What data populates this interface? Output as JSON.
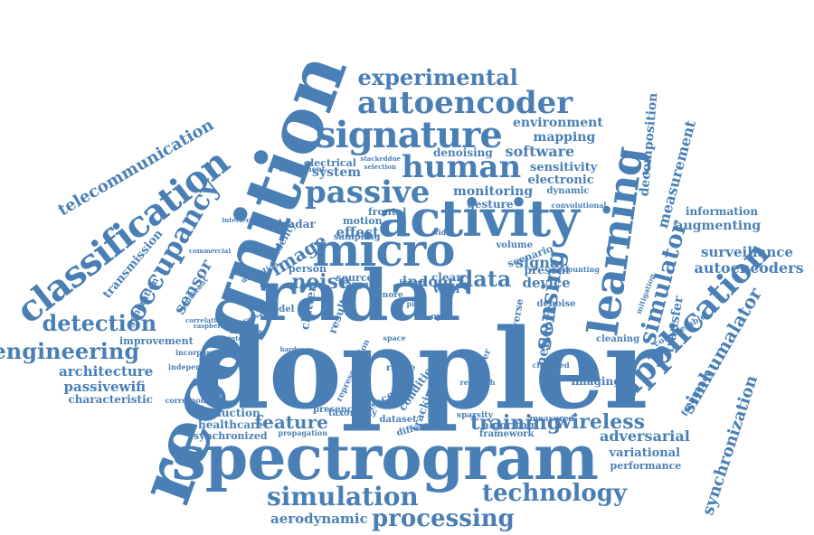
{
  "accent_color": "#4a7fb5",
  "words": [
    {
      "id": "doppler",
      "text": "doppler"
    },
    {
      "id": "spectrogram",
      "text": "spectrogram"
    },
    {
      "id": "recognition",
      "text": "recognition"
    },
    {
      "id": "radar",
      "text": "radar"
    },
    {
      "id": "activity",
      "text": "activity"
    },
    {
      "id": "micro",
      "text": "micro"
    },
    {
      "id": "learning",
      "text": "learning"
    },
    {
      "id": "signature",
      "text": "signature"
    },
    {
      "id": "passive",
      "text": "passive"
    },
    {
      "id": "human",
      "text": "human"
    },
    {
      "id": "autoencoder",
      "text": "autoencoder"
    },
    {
      "id": "classification",
      "text": "classification"
    },
    {
      "id": "occupancy",
      "text": "occupancy"
    },
    {
      "id": "application",
      "text": "application"
    },
    {
      "id": "simulation",
      "text": "simulation"
    },
    {
      "id": "technology",
      "text": "technology"
    },
    {
      "id": "processing",
      "text": "processing"
    },
    {
      "id": "detection",
      "text": "detection"
    },
    {
      "id": "engineering",
      "text": "engineering"
    },
    {
      "id": "experimental",
      "text": "experimental"
    },
    {
      "id": "simulator",
      "text": "simulator"
    },
    {
      "id": "sensing",
      "text": "sensing"
    },
    {
      "id": "simhumalator",
      "text": "simhumalator"
    },
    {
      "id": "training",
      "text": "training"
    },
    {
      "id": "wireless",
      "text": "wireless"
    },
    {
      "id": "feature",
      "text": "feature"
    },
    {
      "id": "noise",
      "text": "noise"
    },
    {
      "id": "data",
      "text": "data"
    },
    {
      "id": "image",
      "text": "image"
    },
    {
      "id": "sensor",
      "text": "sensor"
    },
    {
      "id": "telecommunication",
      "text": "telecommunication"
    },
    {
      "id": "measurement",
      "text": "measurement"
    },
    {
      "id": "decomposition",
      "text": "decomposition"
    },
    {
      "id": "synchronization",
      "text": "synchronization"
    },
    {
      "id": "adversarial",
      "text": "adversarial"
    },
    {
      "id": "variational",
      "text": "variational"
    },
    {
      "id": "performance",
      "text": "performance"
    },
    {
      "id": "autoencoders",
      "text": "autoencoders"
    },
    {
      "id": "surveillance",
      "text": "surveillance"
    },
    {
      "id": "augmenting",
      "text": "augmenting"
    },
    {
      "id": "information",
      "text": "information"
    },
    {
      "id": "architecture",
      "text": "architecture"
    },
    {
      "id": "passivewifi",
      "text": "passivewifi"
    },
    {
      "id": "characteristic",
      "text": "characteristic"
    },
    {
      "id": "healthcare",
      "text": "healthcare"
    },
    {
      "id": "synchronized",
      "text": "synchronized"
    },
    {
      "id": "reduction",
      "text": "reduction"
    },
    {
      "id": "aerodynamic",
      "text": "aerodynamic"
    },
    {
      "id": "software",
      "text": "software"
    },
    {
      "id": "mapping",
      "text": "mapping"
    },
    {
      "id": "environment",
      "text": "environment"
    },
    {
      "id": "monitoring",
      "text": "monitoring"
    },
    {
      "id": "system",
      "text": "system"
    },
    {
      "id": "effect",
      "text": "effect"
    },
    {
      "id": "transfer",
      "text": "transfer"
    },
    {
      "id": "network",
      "text": "network"
    },
    {
      "id": "device",
      "text": "device"
    },
    {
      "id": "indoor",
      "text": "indoor"
    },
    {
      "id": "signal",
      "text": "signal"
    },
    {
      "id": "transmission",
      "text": "transmission"
    },
    {
      "id": "improvement",
      "text": "improvement"
    },
    {
      "id": "imaging",
      "text": "imaging"
    },
    {
      "id": "framework",
      "text": "framework"
    },
    {
      "id": "electronic",
      "text": "electronic"
    },
    {
      "id": "sensitivity",
      "text": "sensitivity"
    },
    {
      "id": "denoising",
      "text": "denoising"
    },
    {
      "id": "frequency",
      "text": "frequency"
    },
    {
      "id": "generation",
      "text": "generation"
    },
    {
      "id": "sdradar",
      "text": "sdradar"
    },
    {
      "id": "electrical",
      "text": "electrical"
    },
    {
      "id": "clutter",
      "text": "clutter"
    },
    {
      "id": "present",
      "text": "present"
    },
    {
      "id": "wall",
      "text": "wall"
    },
    {
      "id": "clean",
      "text": "clean"
    },
    {
      "id": "gesture",
      "text": "gesture"
    },
    {
      "id": "dynamic",
      "text": "dynamic"
    },
    {
      "id": "tracking",
      "text": "tracking"
    },
    {
      "id": "condition",
      "text": "condition"
    },
    {
      "id": "dataset",
      "text": "dataset"
    },
    {
      "id": "science",
      "text": "science"
    },
    {
      "id": "result",
      "text": "result"
    },
    {
      "id": "model",
      "text": "model"
    },
    {
      "id": "volume",
      "text": "volume"
    },
    {
      "id": "scenario",
      "text": "scenario"
    },
    {
      "id": "target",
      "text": "target"
    },
    {
      "id": "source",
      "text": "source"
    },
    {
      "id": "person",
      "text": "person"
    },
    {
      "id": "motion",
      "text": "motion"
    },
    {
      "id": "frontal",
      "text": "frontal"
    },
    {
      "id": "fidelity",
      "text": "fidelity"
    },
    {
      "id": "algorithm",
      "text": "algorithm"
    },
    {
      "id": "measured",
      "text": "measured"
    },
    {
      "id": "distortion",
      "text": "distortion"
    },
    {
      "id": "cleaning",
      "text": "cleaning"
    },
    {
      "id": "denoise",
      "text": "denoise"
    },
    {
      "id": "considerable",
      "text": "considerable"
    },
    {
      "id": "corresponding",
      "text": "corresponding"
    },
    {
      "id": "independent",
      "text": "independent"
    },
    {
      "id": "incorporate",
      "text": "incorporate"
    },
    {
      "id": "different",
      "text": "different"
    },
    {
      "id": "taxonomy",
      "text": "taxonomy"
    },
    {
      "id": "presence",
      "text": "presence"
    },
    {
      "id": "propagation",
      "text": "propagation"
    },
    {
      "id": "method",
      "text": "method"
    },
    {
      "id": "range",
      "text": "range"
    },
    {
      "id": "sparsity",
      "text": "sparsity"
    },
    {
      "id": "paper",
      "text": "paper"
    },
    {
      "id": "based",
      "text": "based"
    },
    {
      "id": "significant",
      "text": "significant"
    },
    {
      "id": "commercial",
      "text": "commercial"
    },
    {
      "id": "interference",
      "text": "interference"
    },
    {
      "id": "raspberry",
      "text": "raspberry"
    },
    {
      "id": "activities",
      "text": "activities"
    },
    {
      "id": "interface",
      "text": "interface"
    },
    {
      "id": "correlation",
      "text": "correlation"
    },
    {
      "id": "generative",
      "text": "generative"
    },
    {
      "id": "stackeddue",
      "text": "stackeddue"
    },
    {
      "id": "selection",
      "text": "selection"
    },
    {
      "id": "experiment",
      "text": "experiment"
    },
    {
      "id": "representation",
      "text": "representation"
    },
    {
      "id": "cluttered",
      "text": "cluttered"
    },
    {
      "id": "convolutional",
      "text": "convolutional"
    },
    {
      "id": "mitigation",
      "text": "mitigation"
    },
    {
      "id": "counting",
      "text": "counting"
    },
    {
      "id": "diverse",
      "text": "diverse"
    },
    {
      "id": "space",
      "text": "space"
    },
    {
      "id": "gnore",
      "text": "gnore"
    },
    {
      "id": "open",
      "text": "open"
    },
    {
      "id": "pistr",
      "text": "pistr"
    },
    {
      "id": "research",
      "text": "research"
    },
    {
      "id": "sampling",
      "text": "sampling"
    },
    {
      "id": "hardware",
      "text": "hardware"
    },
    {
      "id": "wide",
      "text": "wide"
    }
  ]
}
